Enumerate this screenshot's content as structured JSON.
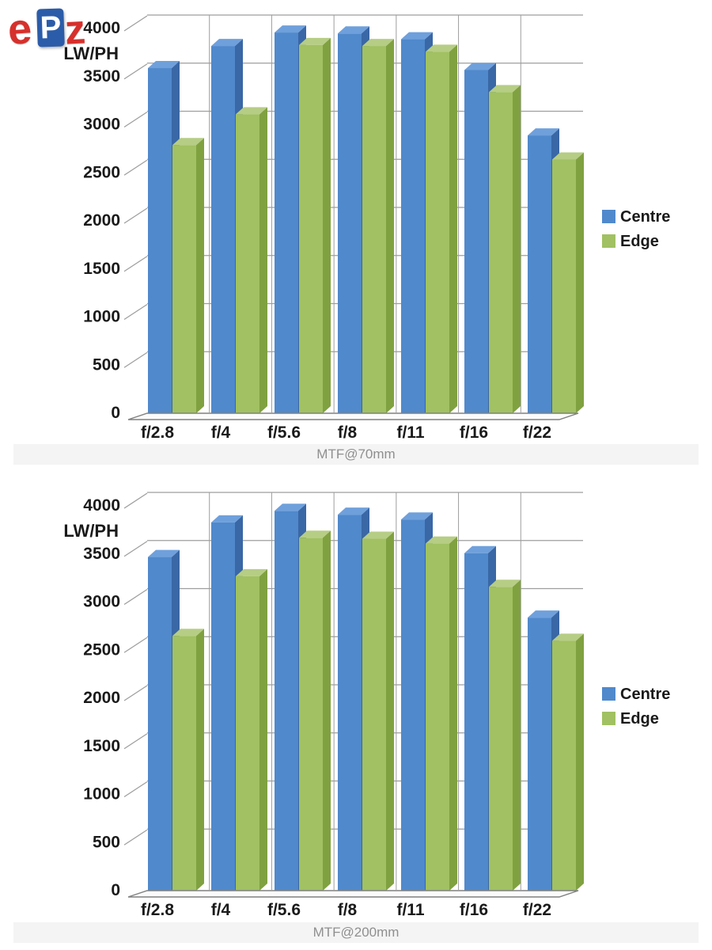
{
  "logo": {
    "e": "e",
    "p": "P",
    "z": "z"
  },
  "colors": {
    "centre_front": "#5089CC",
    "centre_side": "#3A67A6",
    "centre_top": "#6FA0DC",
    "edge_front": "#A1C162",
    "edge_side": "#80A140",
    "edge_top": "#B6CD85",
    "gridline": "#9E9E9E",
    "floor_fill": "#FBFBFB",
    "floor_stroke": "#808080",
    "axis_text": "#1A1A1A",
    "caption_bg": "#F4F4F4",
    "caption_text": "#8F8F8F"
  },
  "chart_data": [
    {
      "type": "bar",
      "style": "3d-clustered-column",
      "title": "MTF@70mm",
      "ylabel": "LW/PH",
      "xlabel": "",
      "categories": [
        "f/2.8",
        "f/4",
        "f/5.6",
        "f/8",
        "f/11",
        "f/16",
        "f/22"
      ],
      "series": [
        {
          "name": "Centre",
          "color": "#5089CC",
          "values": [
            3580,
            3810,
            3950,
            3940,
            3880,
            3560,
            2880
          ]
        },
        {
          "name": "Edge",
          "color": "#A1C162",
          "values": [
            2780,
            3100,
            3820,
            3810,
            3750,
            3330,
            2630
          ]
        }
      ],
      "ylim": [
        0,
        4000
      ],
      "ytick_step": 500,
      "yticks": [
        "0",
        "500",
        "1000",
        "1500",
        "2000",
        "2500",
        "3000",
        "3500",
        "4000"
      ],
      "grid": true,
      "legend_position": "right",
      "legend": [
        "Centre",
        "Edge"
      ]
    },
    {
      "type": "bar",
      "style": "3d-clustered-column",
      "title": "MTF@200mm",
      "ylabel": "LW/PH",
      "xlabel": "",
      "categories": [
        "f/2.8",
        "f/4",
        "f/5.6",
        "f/8",
        "f/11",
        "f/16",
        "f/22"
      ],
      "series": [
        {
          "name": "Centre",
          "color": "#5089CC",
          "values": [
            3460,
            3820,
            3940,
            3900,
            3850,
            3500,
            2830
          ]
        },
        {
          "name": "Edge",
          "color": "#A1C162",
          "values": [
            2640,
            3260,
            3660,
            3650,
            3600,
            3150,
            2590
          ]
        }
      ],
      "ylim": [
        0,
        4000
      ],
      "ytick_step": 500,
      "yticks": [
        "0",
        "500",
        "1000",
        "1500",
        "2000",
        "2500",
        "3000",
        "3500",
        "4000"
      ],
      "grid": true,
      "legend_position": "right",
      "legend": [
        "Centre",
        "Edge"
      ]
    }
  ]
}
